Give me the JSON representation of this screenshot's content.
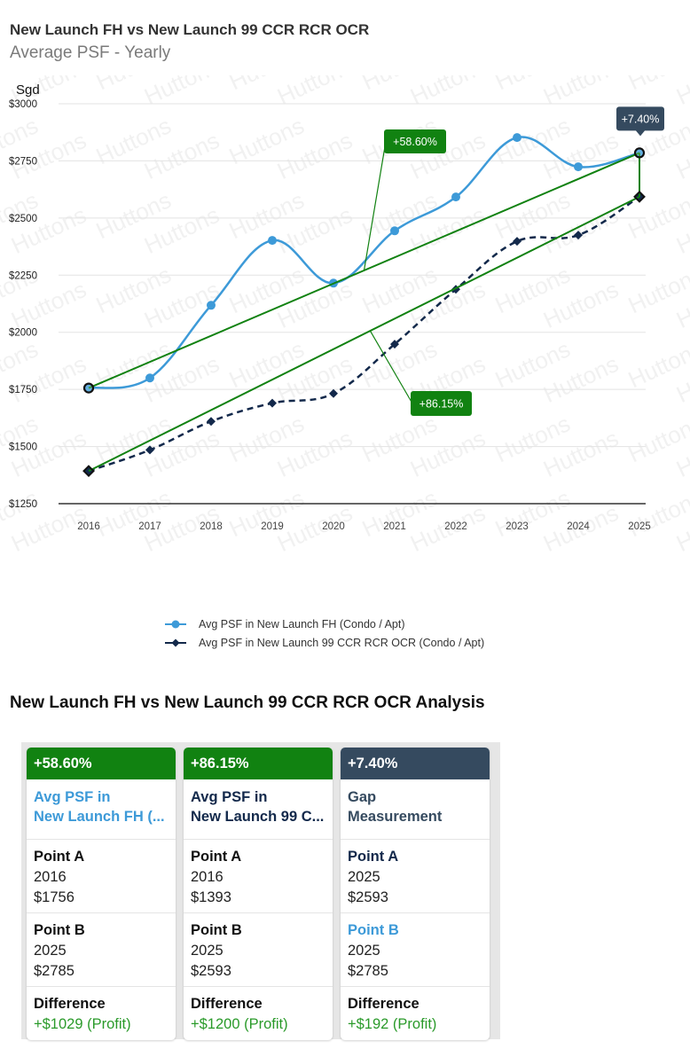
{
  "header": {
    "title": "New Launch FH vs New Launch 99 CCR RCR OCR",
    "subtitle": "Average PSF - Yearly"
  },
  "colors": {
    "series_fh": "#3d9ad8",
    "series_99": "#13294b",
    "trend": "#118211",
    "gap_badge": "#354a5f",
    "profit": "#2a9a2a"
  },
  "chart_data": {
    "type": "line",
    "title": "New Launch FH vs New Launch 99 CCR RCR OCR",
    "subtitle": "Average PSF - Yearly",
    "ylabel": "Sgd",
    "xlabel": "",
    "x": [
      "2016",
      "2017",
      "2018",
      "2019",
      "2020",
      "2021",
      "2022",
      "2023",
      "2024",
      "2025"
    ],
    "ylim": [
      1250,
      3000
    ],
    "yticks": [
      1250,
      1500,
      1750,
      2000,
      2250,
      2500,
      2750,
      3000
    ],
    "ytick_labels": [
      "$1250",
      "$1500",
      "$1750",
      "$2000",
      "$2250",
      "$2500",
      "$2750",
      "$3000"
    ],
    "grid": true,
    "legend_position": "bottom",
    "series": [
      {
        "name": "Avg PSF in New Launch FH (Condo / Apt)",
        "style": "smooth-solid-circle",
        "values": [
          1756,
          1800,
          2118,
          2402,
          2215,
          2444,
          2592,
          2852,
          2724,
          2785
        ]
      },
      {
        "name": "Avg PSF in New Launch 99 CCR RCR OCR (Condo / Apt)",
        "style": "smooth-dashed-diamond",
        "values": [
          1393,
          1485,
          1610,
          1690,
          1732,
          1948,
          2188,
          2398,
          2425,
          2593
        ]
      }
    ],
    "annotations": [
      {
        "label": "+58.60%",
        "type": "trend",
        "from": [
          "2016",
          1756
        ],
        "to": [
          "2025",
          2785
        ],
        "color": "#118211"
      },
      {
        "label": "+86.15%",
        "type": "trend",
        "from": [
          "2016",
          1393
        ],
        "to": [
          "2025",
          2593
        ],
        "color": "#118211"
      },
      {
        "label": "+7.40%",
        "type": "gap",
        "from": [
          "2025",
          2593
        ],
        "to": [
          "2025",
          2785
        ],
        "color": "#354a5f"
      }
    ]
  },
  "legend": {
    "items": [
      "Avg PSF in New Launch FH (Condo / Apt)",
      "Avg PSF in New Launch 99 CCR RCR OCR (Condo / Apt)"
    ]
  },
  "analysis": {
    "title": "New Launch FH vs New Launch 99 CCR RCR OCR Analysis",
    "cards": [
      {
        "badge": "+58.60%",
        "badge_color": "#118211",
        "name_line1": "Avg PSF in",
        "name_line2": "New Launch FH (...",
        "name_color": "#3d9ad8",
        "point_a_label": "Point A",
        "point_a_label_color": "#111111",
        "point_a_year": "2016",
        "point_a_value": "$1756",
        "point_b_label": "Point B",
        "point_b_label_color": "#111111",
        "point_b_year": "2025",
        "point_b_value": "$2785",
        "diff_label": "Difference",
        "diff_value": "+$1029 (Profit)"
      },
      {
        "badge": "+86.15%",
        "badge_color": "#118211",
        "name_line1": "Avg PSF in",
        "name_line2": "New Launch 99 C...",
        "name_color": "#13294b",
        "point_a_label": "Point A",
        "point_a_label_color": "#111111",
        "point_a_year": "2016",
        "point_a_value": "$1393",
        "point_b_label": "Point B",
        "point_b_label_color": "#111111",
        "point_b_year": "2025",
        "point_b_value": "$2593",
        "diff_label": "Difference",
        "diff_value": "+$1200 (Profit)"
      },
      {
        "badge": "+7.40%",
        "badge_color": "#354a5f",
        "name_line1": "Gap",
        "name_line2": "Measurement",
        "name_color": "#354a5f",
        "point_a_label": "Point A",
        "point_a_label_color": "#13294b",
        "point_a_year": "2025",
        "point_a_value": "$2593",
        "point_b_label": "Point B",
        "point_b_label_color": "#3d9ad8",
        "point_b_year": "2025",
        "point_b_value": "$2785",
        "diff_label": "Difference",
        "diff_value": "+$192 (Profit)"
      }
    ]
  }
}
